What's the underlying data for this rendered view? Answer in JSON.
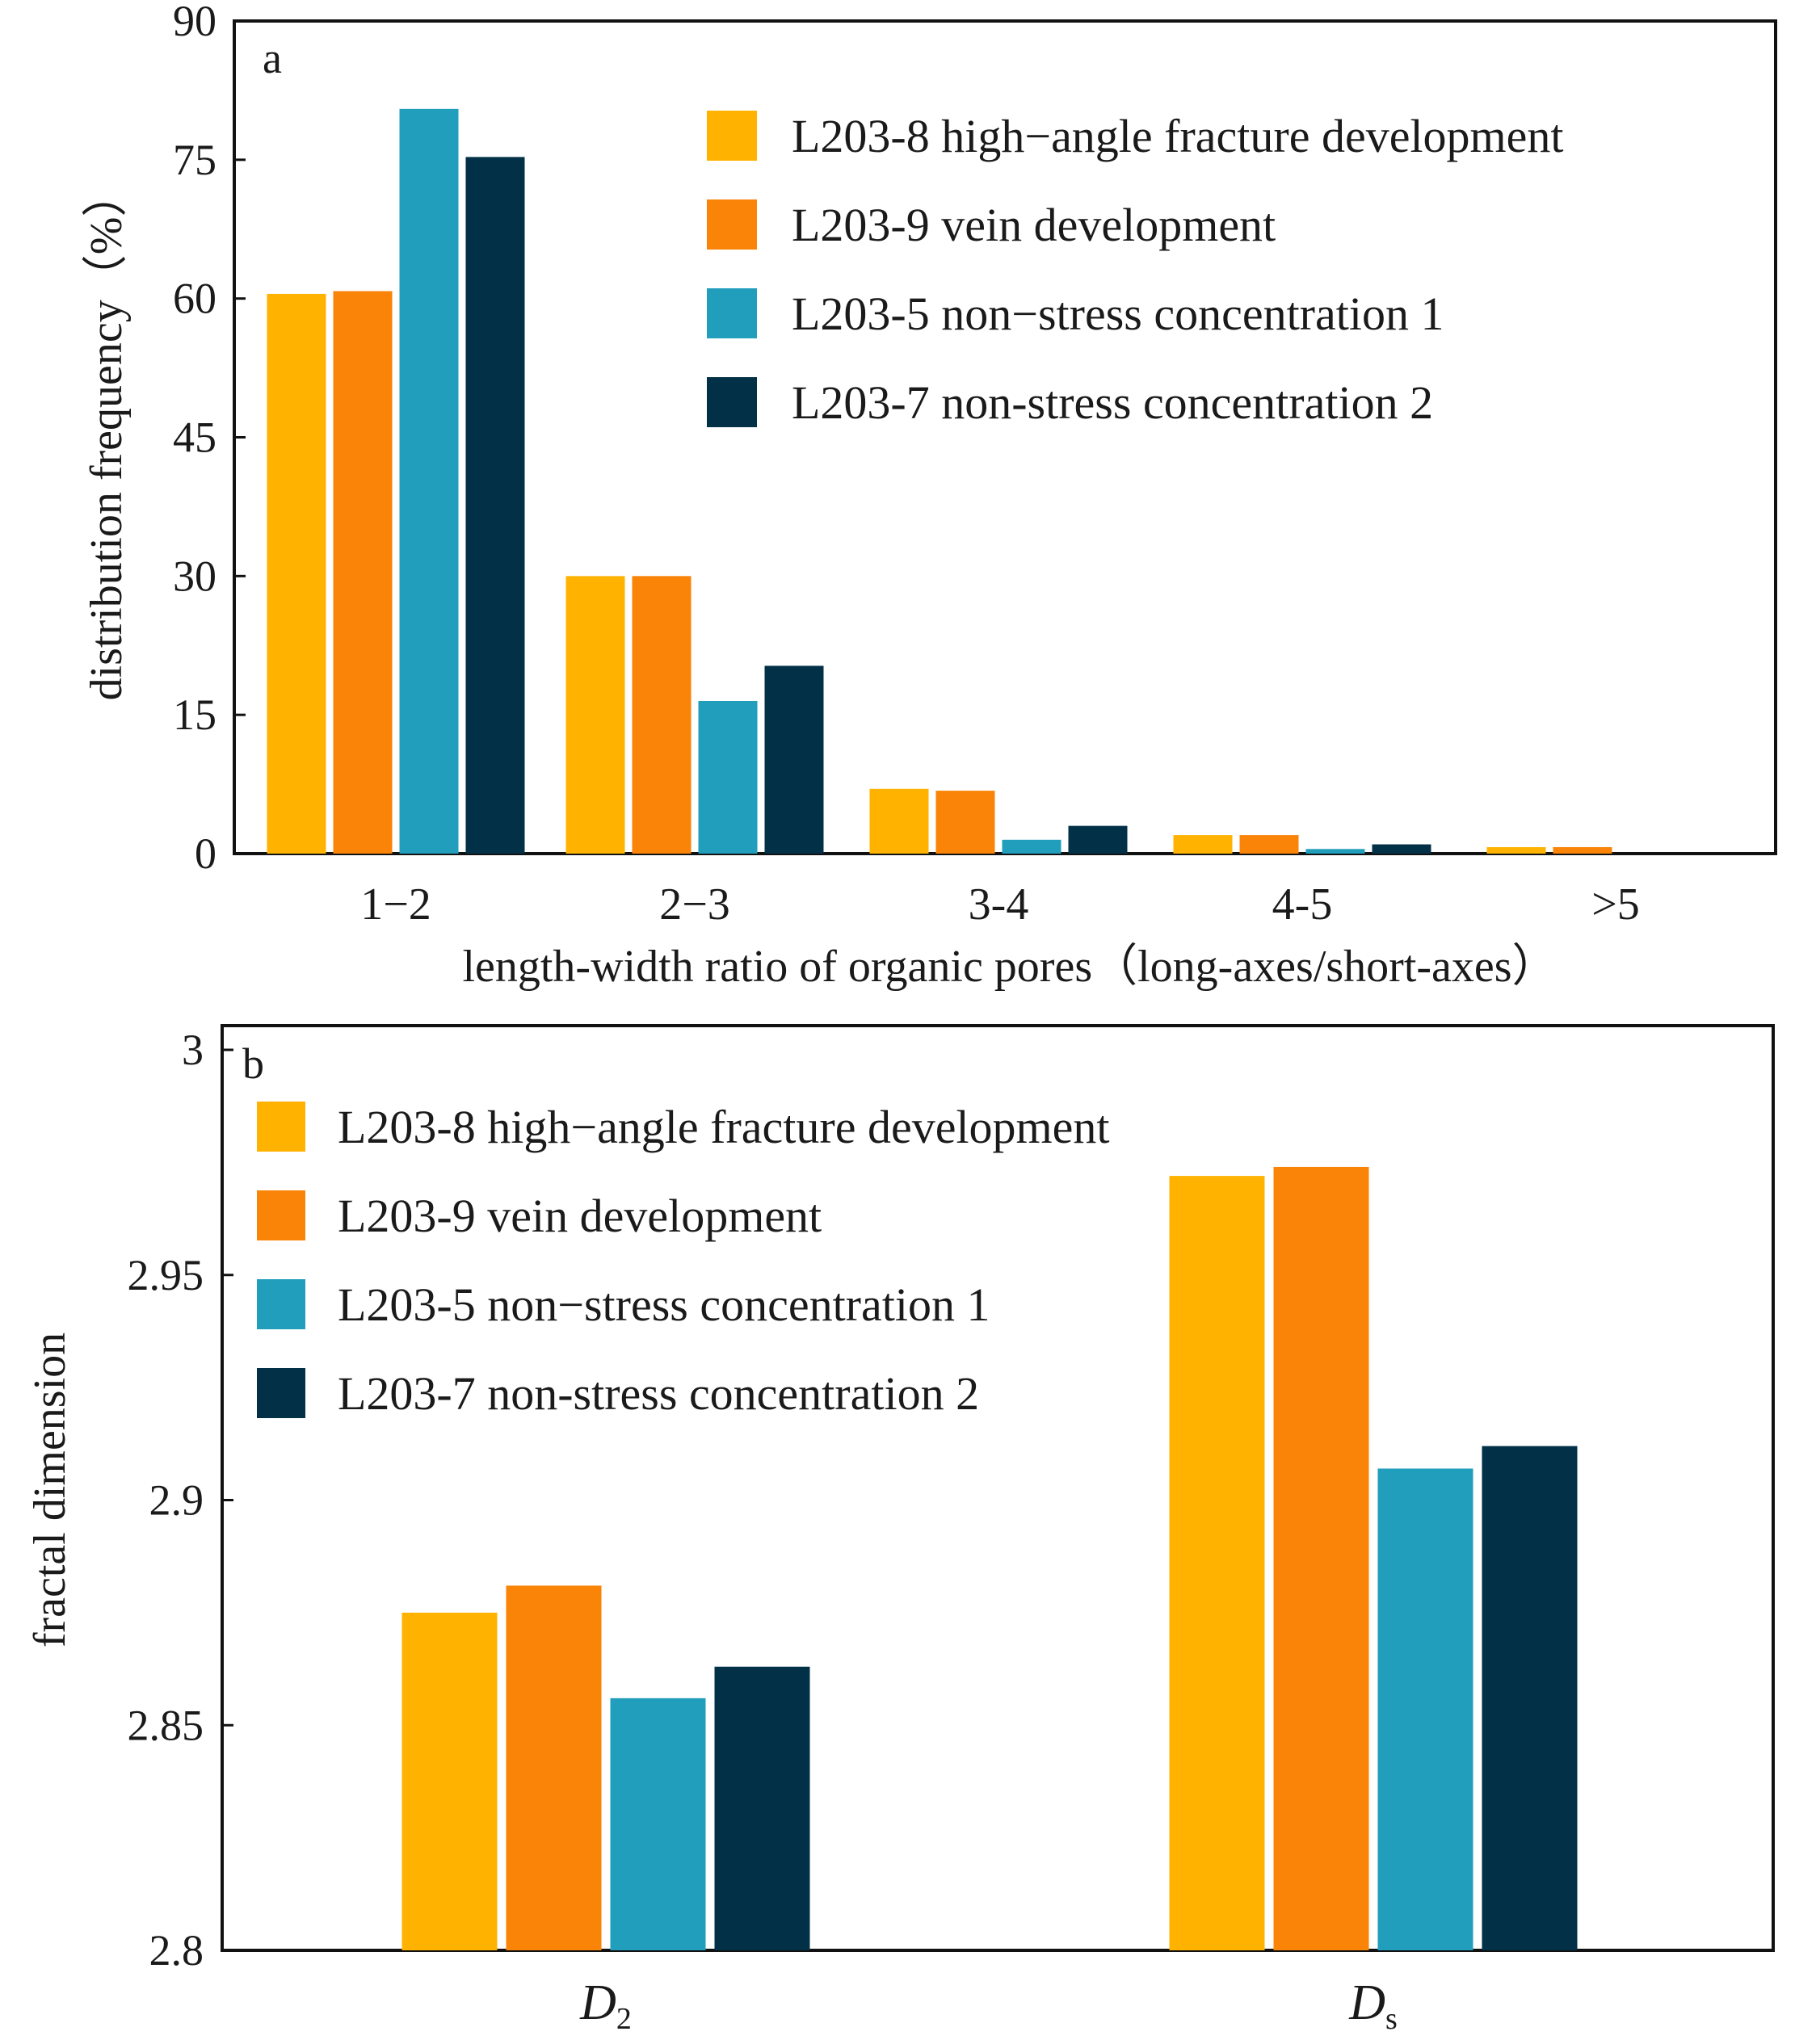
{
  "chart_data": [
    {
      "panel": "a",
      "type": "bar",
      "categories": [
        "1−2",
        "2−3",
        "3-4",
        "4-5",
        ">5"
      ],
      "series": [
        {
          "name": "L203-8 high−angle fracture development",
          "color": "#FFB300",
          "values": [
            60.5,
            30,
            7,
            2,
            0.7
          ]
        },
        {
          "name": "L203-9 vein development",
          "color": "#F98407",
          "values": [
            60.8,
            30,
            6.8,
            2,
            0.7
          ]
        },
        {
          "name": "L203-5 non−stress concentration 1",
          "color": "#219EBC",
          "values": [
            80.5,
            16.5,
            1.5,
            0.5,
            0
          ]
        },
        {
          "name": "L203-7 non-stress concentration 2",
          "color": "#023047",
          "values": [
            75.3,
            20.3,
            3,
            1,
            0
          ]
        }
      ],
      "xlabel": "length-width ratio of organic pores（long-axes/short-axes）",
      "ylabel": "distribution frequency（%）",
      "ylim": [
        0,
        90
      ],
      "yticks": [
        "0",
        "15",
        "30",
        "45",
        "60",
        "75",
        "90"
      ],
      "legend": "top-right",
      "grid": false
    },
    {
      "panel": "b",
      "type": "bar",
      "categories": [
        {
          "main": "D",
          "sub": "2"
        },
        {
          "main": "D",
          "sub": "s"
        }
      ],
      "series": [
        {
          "name": "L203-8 high−angle fracture development",
          "color": "#FFB300",
          "values": [
            2.875,
            2.972
          ]
        },
        {
          "name": "L203-9 vein development",
          "color": "#F98407",
          "values": [
            2.881,
            2.974
          ]
        },
        {
          "name": "L203-5 non−stress concentration 1",
          "color": "#219EBC",
          "values": [
            2.856,
            2.907
          ]
        },
        {
          "name": "L203-7 non-stress concentration 2",
          "color": "#023047",
          "values": [
            2.863,
            2.912
          ]
        }
      ],
      "xlabel": "",
      "ylabel": "fractal dimension",
      "ylim": [
        2.8,
        3.0
      ],
      "yticks": [
        "2.8",
        "2.85",
        "2.9",
        "2.95",
        "3"
      ],
      "legend": "top-left",
      "grid": false
    }
  ]
}
